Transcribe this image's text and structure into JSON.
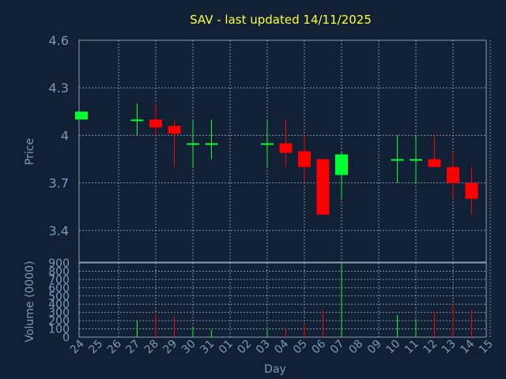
{
  "title": "SAV - last updated 14/11/2025",
  "chart_data": {
    "type": "candlestick",
    "title": "SAV - last updated 14/11/2025",
    "xlabel": "Day",
    "price_panel": {
      "ylabel": "Price",
      "ylim": [
        3.2,
        4.6
      ],
      "yticks": [
        "4.6",
        "4.3",
        "4",
        "3.7",
        "3.4"
      ],
      "ytick_values": [
        4.6,
        4.3,
        4.0,
        3.7,
        3.4
      ]
    },
    "volume_panel": {
      "ylabel": "Volume (0000)",
      "ylim": [
        0,
        900
      ],
      "yticks": [
        "900",
        "800",
        "700",
        "600",
        "500",
        "400",
        "300",
        "200",
        "100",
        "0"
      ],
      "ytick_values": [
        900,
        800,
        700,
        600,
        500,
        400,
        300,
        200,
        100,
        0
      ]
    },
    "x_ticks": [
      "24",
      "25",
      "26",
      "27",
      "28",
      "29",
      "30",
      "31",
      "01",
      "02",
      "03",
      "04",
      "05",
      "06",
      "07",
      "08",
      "09",
      "10",
      "11",
      "12",
      "13",
      "14",
      "15"
    ],
    "colors": {
      "up": "#00ff33",
      "down": "#ff0000",
      "background": "#112034",
      "title": "#ffff33",
      "axis_text": "#7b9ab8"
    },
    "candles": [
      {
        "day": "24",
        "open": 4.1,
        "high": 4.15,
        "low": 4.1,
        "close": 4.15,
        "volume": 0
      },
      {
        "day": "27",
        "open": 4.1,
        "high": 4.2,
        "low": 4.0,
        "close": 4.1,
        "volume": 200
      },
      {
        "day": "28",
        "open": 4.1,
        "high": 4.2,
        "low": 4.0,
        "close": 4.05,
        "volume": 290
      },
      {
        "day": "29",
        "open": 4.06,
        "high": 4.1,
        "low": 3.8,
        "close": 4.01,
        "volume": 260
      },
      {
        "day": "30",
        "open": 3.95,
        "high": 4.1,
        "low": 3.8,
        "close": 3.95,
        "volume": 120
      },
      {
        "day": "31",
        "open": 3.95,
        "high": 4.1,
        "low": 3.85,
        "close": 3.95,
        "volume": 90
      },
      {
        "day": "03",
        "open": 3.95,
        "high": 4.1,
        "low": 3.8,
        "close": 3.95,
        "volume": 100
      },
      {
        "day": "04",
        "open": 3.95,
        "high": 4.1,
        "low": 3.8,
        "close": 3.89,
        "volume": 100
      },
      {
        "day": "05",
        "open": 3.9,
        "high": 4.0,
        "low": 3.7,
        "close": 3.8,
        "volume": 160
      },
      {
        "day": "06",
        "open": 3.85,
        "high": 3.85,
        "low": 3.5,
        "close": 3.5,
        "volume": 330
      },
      {
        "day": "07",
        "open": 3.75,
        "high": 3.9,
        "low": 3.6,
        "close": 3.88,
        "volume": 880
      },
      {
        "day": "10",
        "open": 3.85,
        "high": 4.0,
        "low": 3.7,
        "close": 3.85,
        "volume": 270
      },
      {
        "day": "11",
        "open": 3.85,
        "high": 4.0,
        "low": 3.7,
        "close": 3.85,
        "volume": 220
      },
      {
        "day": "12",
        "open": 3.85,
        "high": 4.0,
        "low": 3.8,
        "close": 3.8,
        "volume": 310
      },
      {
        "day": "13",
        "open": 3.8,
        "high": 3.9,
        "low": 3.6,
        "close": 3.7,
        "volume": 400
      },
      {
        "day": "14",
        "open": 3.7,
        "high": 3.8,
        "low": 3.5,
        "close": 3.6,
        "volume": 330
      }
    ]
  }
}
